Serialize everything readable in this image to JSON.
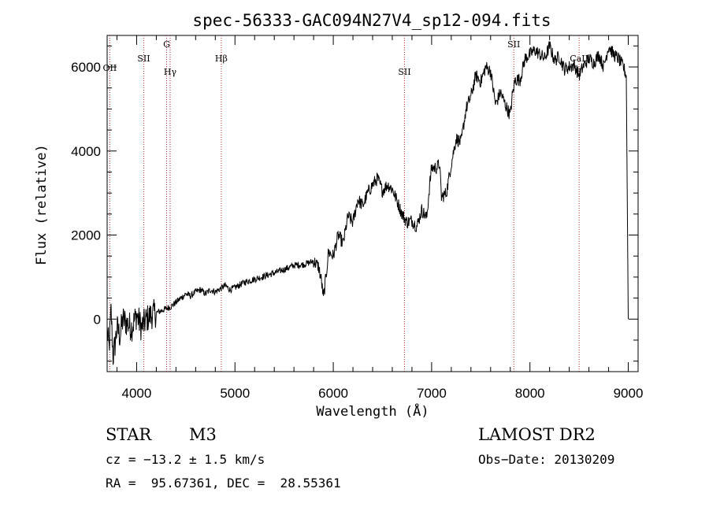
{
  "chart_data": {
    "type": "line",
    "title": "spec-56333-GAC094N27V4_sp12-094.fits",
    "xlabel": "Wavelength (Å)",
    "ylabel": "Flux (relative)",
    "xlim": [
      3700,
      9100
    ],
    "ylim": [
      -1250,
      6750
    ],
    "xticks": [
      4000,
      5000,
      6000,
      7000,
      8000,
      9000
    ],
    "yticks": [
      0,
      2000,
      4000,
      6000
    ],
    "grid": false,
    "line_color": "#000000",
    "marker_color": "#b22222",
    "series": [
      {
        "x": [
          3700,
          3720,
          3740,
          3760,
          3780,
          3800,
          3830,
          3860,
          3900,
          3950,
          4000,
          4050,
          4100,
          4150,
          4200,
          4250,
          4300,
          4350,
          4400,
          4450,
          4500,
          4550,
          4600,
          4650,
          4700,
          4750,
          4800,
          4850,
          4900,
          4950,
          5000,
          5100,
          5200,
          5300,
          5400,
          5500,
          5600,
          5700,
          5800,
          5850,
          5880,
          5900,
          5930,
          5950,
          6000,
          6050,
          6100,
          6150,
          6200,
          6250,
          6300,
          6350,
          6400,
          6450,
          6500,
          6550,
          6600,
          6650,
          6700,
          6750,
          6800,
          6850,
          6900,
          6950,
          6980,
          7000,
          7050,
          7080,
          7100,
          7150,
          7200,
          7250,
          7300,
          7350,
          7400,
          7450,
          7500,
          7550,
          7600,
          7650,
          7700,
          7750,
          7800,
          7820,
          7850,
          7900,
          7950,
          8000,
          8050,
          8100,
          8150,
          8200,
          8250,
          8300,
          8350,
          8400,
          8450,
          8500,
          8550,
          8600,
          8650,
          8700,
          8750,
          8800,
          8850,
          8900,
          8950,
          8980,
          9000
        ],
        "y": [
          -300,
          -700,
          200,
          -900,
          -600,
          -200,
          -400,
          0,
          -100,
          -200,
          100,
          -200,
          0,
          100,
          150,
          200,
          250,
          300,
          400,
          500,
          600,
          550,
          650,
          700,
          600,
          700,
          650,
          720,
          800,
          700,
          750,
          880,
          950,
          1020,
          1100,
          1180,
          1280,
          1300,
          1380,
          1250,
          900,
          500,
          1100,
          1600,
          1500,
          2000,
          1800,
          2450,
          2300,
          2850,
          2700,
          3000,
          3200,
          3350,
          3050,
          3200,
          3100,
          2800,
          2500,
          2300,
          2350,
          2200,
          2600,
          2400,
          3200,
          3600,
          3600,
          3700,
          2900,
          3000,
          3700,
          4300,
          4200,
          5000,
          5300,
          5800,
          5650,
          6000,
          5900,
          5100,
          5400,
          5100,
          4850,
          5300,
          5700,
          5700,
          6200,
          6300,
          6400,
          6300,
          6200,
          6500,
          6150,
          6250,
          5950,
          6000,
          6050,
          5800,
          6050,
          6200,
          6100,
          6300,
          6000,
          6500,
          6300,
          6200,
          6000,
          5800,
          0
        ]
      }
    ],
    "lines": [
      {
        "label": "OII",
        "x": 3727
      },
      {
        "label": "SII",
        "x": 4072
      },
      {
        "label": "G",
        "x": 4305
      },
      {
        "label": "Hγ",
        "x": 4341
      },
      {
        "label": "Hβ",
        "x": 4861
      },
      {
        "label": "SII",
        "x": 6724
      },
      {
        "label": "SII",
        "x": 7836
      },
      {
        "label": "CaII",
        "x": 8500
      }
    ]
  },
  "info": {
    "class": "STAR",
    "subclass": "M3",
    "survey": "LAMOST DR2",
    "cz": "cz = −13.2 ± 1.5 km/s",
    "obs_date": "Obs−Date: 20130209",
    "coords": "RA =  95.67361, DEC =  28.55361"
  }
}
